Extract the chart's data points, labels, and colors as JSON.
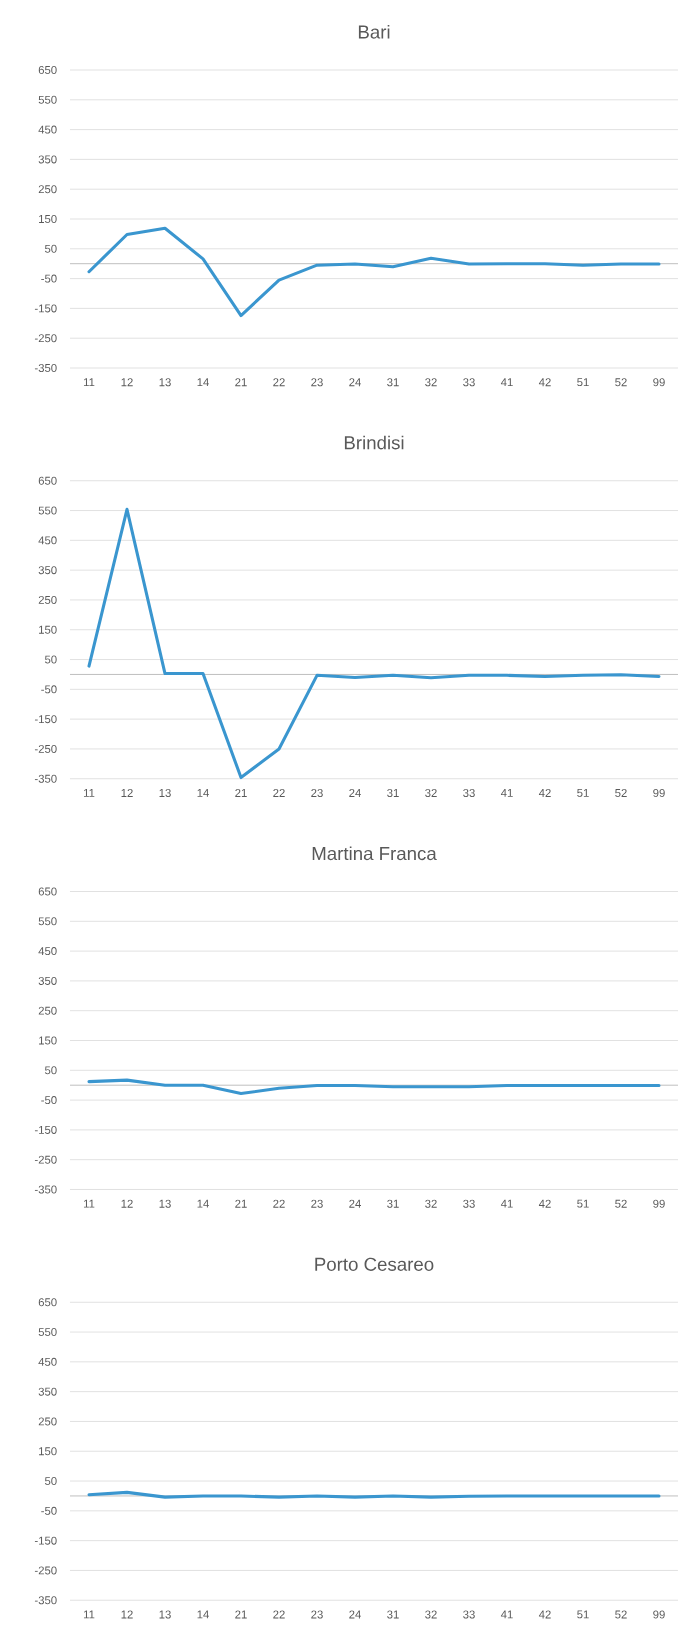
{
  "chart_data": [
    {
      "type": "line",
      "title": "Bari",
      "categories": [
        "11",
        "12",
        "13",
        "14",
        "21",
        "22",
        "23",
        "24",
        "31",
        "32",
        "33",
        "41",
        "42",
        "51",
        "52",
        "99"
      ],
      "color": "#3a96cf",
      "values": [
        -27,
        98,
        119,
        16,
        -174,
        -55,
        -5,
        -1,
        -10,
        18,
        -1,
        0,
        0,
        -5,
        -1,
        -1
      ],
      "ylim": [
        -350,
        650
      ],
      "yticks": [
        -350,
        -250,
        -150,
        -50,
        50,
        150,
        250,
        350,
        450,
        550,
        650
      ],
      "grid": "y"
    },
    {
      "type": "line",
      "title": "Brindisi",
      "categories": [
        "11",
        "12",
        "13",
        "14",
        "21",
        "22",
        "23",
        "24",
        "31",
        "32",
        "33",
        "41",
        "42",
        "51",
        "52",
        "99"
      ],
      "color": "#3a96cf",
      "values": [
        28,
        554,
        3,
        3,
        -346,
        -250,
        -3,
        -10,
        -3,
        -11,
        -3,
        -3,
        -7,
        -3,
        -1,
        -7
      ],
      "ylim": [
        -350,
        650
      ],
      "yticks": [
        -350,
        -250,
        -150,
        -50,
        50,
        150,
        250,
        350,
        450,
        550,
        650
      ],
      "grid": "y"
    },
    {
      "type": "line",
      "title": "Martina Franca",
      "categories": [
        "11",
        "12",
        "13",
        "14",
        "21",
        "22",
        "23",
        "24",
        "31",
        "32",
        "33",
        "41",
        "42",
        "51",
        "52",
        "99"
      ],
      "color": "#3a96cf",
      "values": [
        12,
        17,
        0,
        0,
        -28,
        -10,
        -1,
        -1,
        -5,
        -5,
        -5,
        -1,
        -1,
        -1,
        -1,
        -1
      ],
      "ylim": [
        -350,
        650
      ],
      "yticks": [
        -350,
        -250,
        -150,
        -50,
        50,
        150,
        250,
        350,
        450,
        550,
        650
      ],
      "grid": "y"
    },
    {
      "type": "line",
      "title": "Porto Cesareo",
      "categories": [
        "11",
        "12",
        "13",
        "14",
        "21",
        "22",
        "23",
        "24",
        "31",
        "32",
        "33",
        "41",
        "42",
        "51",
        "52",
        "99"
      ],
      "color": "#3a96cf",
      "values": [
        4,
        12,
        -4,
        0,
        0,
        -4,
        0,
        -4,
        0,
        -4,
        -1,
        0,
        0,
        0,
        0,
        0
      ],
      "ylim": [
        -350,
        650
      ],
      "yticks": [
        -350,
        -250,
        -150,
        -50,
        50,
        150,
        250,
        350,
        450,
        550,
        650
      ],
      "grid": "y"
    }
  ]
}
